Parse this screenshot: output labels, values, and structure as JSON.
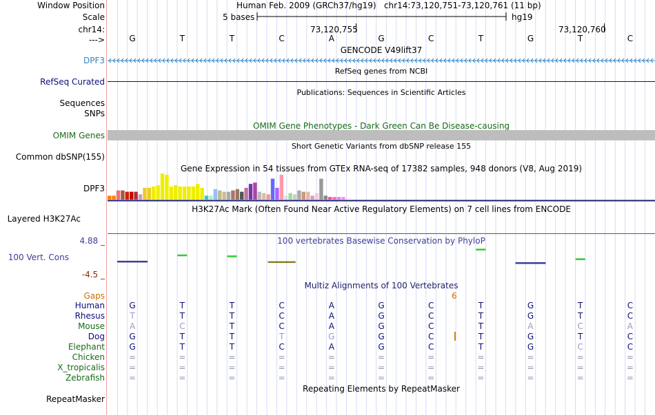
{
  "header": {
    "window_position_label": "Window Position",
    "scale_label": "Scale",
    "chrom_label": "chr14:",
    "strand_label": "--->",
    "position_title": "Human Feb. 2009 (GRCh37/hg19)   chr14:73,120,751-73,120,761 (11 bp)",
    "scale_text": "5 bases",
    "assembly": "hg19",
    "tick_left": "73,120,755",
    "tick_right": "73,120,760"
  },
  "bases": [
    "G",
    "T",
    "T",
    "C",
    "A",
    "G",
    "C",
    "T",
    "G",
    "T",
    "C"
  ],
  "tracks": {
    "gencode": {
      "side_label": "DPF3",
      "title": "GENCODE V49lift37",
      "color": "#3385c6"
    },
    "refseq": {
      "side_label": "RefSeq Curated",
      "title": "RefSeq genes from NCBI",
      "color": "#0c0c78"
    },
    "publications": {
      "side_label": "Sequences",
      "title": "Publications: Sequences in Scientific Articles"
    },
    "snps_pub": {
      "side_label": "SNPs"
    },
    "omim": {
      "side_label": "OMIM Genes",
      "title": "OMIM Gene Phenotypes - Dark Green Can Be Disease-causing",
      "color": "#176b17"
    },
    "dbsnp": {
      "side_label": "Common dbSNP(155)",
      "title": "Short Genetic Variants from dbSNP release 155"
    },
    "gtex": {
      "side_label": "DPF3",
      "title": "Gene Expression in 54 tissues from GTEx RNA-seq of 17382 samples, 948 donors (V8, Aug 2019)"
    },
    "h3k27ac": {
      "side_label": "Layered H3K27Ac",
      "title": "H3K27Ac Mark (Often Found Near Active Regulatory Elements) on 7 cell lines from ENCODE"
    },
    "phylop": {
      "side_label": "100 Vert. Cons",
      "max": "4.88 _",
      "min": "-4.5 _",
      "title": "100 vertebrates Basewise Conservation by PhyloP",
      "color": "#3c3c96"
    },
    "multiz": {
      "title": "Multiz Alignments of 100 Vertebrates",
      "color": "#1c1c6c",
      "gaps_label": "Gaps",
      "gap_count": "6"
    },
    "repeatmasker": {
      "side_label": "RepeatMasker",
      "title": "Repeating Elements by RepeatMasker"
    }
  },
  "species": [
    {
      "name": "Human",
      "color": "#0c0c78",
      "seq": [
        "G",
        "T",
        "T",
        "C",
        "A",
        "G",
        "C",
        "T",
        "G",
        "T",
        "C"
      ]
    },
    {
      "name": "Rhesus",
      "color": "#0c0c78",
      "seq": [
        "T",
        "T",
        "T",
        "C",
        "A",
        "G",
        "C",
        "T",
        "G",
        "T",
        "C"
      ]
    },
    {
      "name": "Mouse",
      "color": "#176b17",
      "seq": [
        "A",
        "C",
        "T",
        "C",
        "A",
        "G",
        "C",
        "T",
        "A",
        "C",
        "A"
      ]
    },
    {
      "name": "Dog",
      "color": "#0c0c78",
      "seq": [
        "G",
        "T",
        "T",
        "T",
        "G",
        "G",
        "C",
        "T",
        "G",
        "T",
        "C"
      ]
    },
    {
      "name": "Elephant",
      "color": "#176b17",
      "seq": [
        "G",
        "T",
        "T",
        "C",
        "A",
        "G",
        "C",
        "T",
        "G",
        "C",
        "C"
      ]
    },
    {
      "name": "Chicken",
      "color": "#176b17",
      "seq": [
        "=",
        "=",
        "=",
        "=",
        "=",
        "=",
        "=",
        "=",
        "=",
        "=",
        "="
      ]
    },
    {
      "name": "X_tropicalis",
      "color": "#176b17",
      "seq": [
        "=",
        "=",
        "=",
        "=",
        "=",
        "=",
        "=",
        "=",
        "=",
        "=",
        "="
      ]
    },
    {
      "name": "Zebrafish",
      "color": "#176b17",
      "seq": [
        "=",
        "=",
        "=",
        "=",
        "=",
        "=",
        "=",
        "=",
        "=",
        "=",
        "="
      ]
    }
  ],
  "gtex_bars": [
    {
      "v": 0.15,
      "c": "#ff7f00"
    },
    {
      "v": 0.15,
      "c": "#ff7f00"
    },
    {
      "v": 0.35,
      "c": "#ee7070"
    },
    {
      "v": 0.35,
      "c": "#aa5544"
    },
    {
      "v": 0.3,
      "c": "#cc2200"
    },
    {
      "v": 0.3,
      "c": "#cc0000"
    },
    {
      "v": 0.3,
      "c": "#aa3333"
    },
    {
      "v": 0.2,
      "c": "#cc99cc"
    },
    {
      "v": 0.45,
      "c": "#eecc22"
    },
    {
      "v": 0.45,
      "c": "#eecc22"
    },
    {
      "v": 0.5,
      "c": "#eeee00"
    },
    {
      "v": 0.55,
      "c": "#eeee00"
    },
    {
      "v": 1.0,
      "c": "#eeee00"
    },
    {
      "v": 0.95,
      "c": "#eeee00"
    },
    {
      "v": 0.5,
      "c": "#eeee00"
    },
    {
      "v": 0.55,
      "c": "#eeee00"
    },
    {
      "v": 0.5,
      "c": "#eeee00"
    },
    {
      "v": 0.5,
      "c": "#eeee00"
    },
    {
      "v": 0.5,
      "c": "#eeee00"
    },
    {
      "v": 0.5,
      "c": "#eeee00"
    },
    {
      "v": 0.6,
      "c": "#eeee00"
    },
    {
      "v": 0.45,
      "c": "#eeee00"
    },
    {
      "v": 0.15,
      "c": "#33cccc"
    },
    {
      "v": 0.15,
      "c": "#aaeecc"
    },
    {
      "v": 0.4,
      "c": "#99bbff"
    },
    {
      "v": 0.35,
      "c": "#bbbb88"
    },
    {
      "v": 0.3,
      "c": "#ccbb99"
    },
    {
      "v": 0.3,
      "c": "#aaaaaa"
    },
    {
      "v": 0.35,
      "c": "#aa7766"
    },
    {
      "v": 0.4,
      "c": "#997766"
    },
    {
      "v": 0.3,
      "c": "#555555"
    },
    {
      "v": 0.45,
      "c": "#bb7799"
    },
    {
      "v": 0.6,
      "c": "#7733aa"
    },
    {
      "v": 0.65,
      "c": "#aa44aa"
    },
    {
      "v": 0.3,
      "c": "#bbbbbb"
    },
    {
      "v": 0.25,
      "c": "#ddbbaa"
    },
    {
      "v": 0.2,
      "c": "#ee9999"
    },
    {
      "v": 0.8,
      "c": "#6666ff"
    },
    {
      "v": 0.45,
      "c": "#aa66ff"
    },
    {
      "v": 0.95,
      "c": "#ff99aa"
    },
    {
      "v": 0.15,
      "c": "#dddddd"
    },
    {
      "v": 0.25,
      "c": "#99dd99"
    },
    {
      "v": 0.2,
      "c": "#cccccc"
    },
    {
      "v": 0.35,
      "c": "#aaaaaa"
    },
    {
      "v": 0.3,
      "c": "#cc9977"
    },
    {
      "v": 0.3,
      "c": "#ddbbaa"
    },
    {
      "v": 0.15,
      "c": "#dd99cc"
    },
    {
      "v": 0.25,
      "c": "#eeccdd"
    },
    {
      "v": 0.8,
      "c": "#999999"
    },
    {
      "v": 0.15,
      "c": "#888888"
    },
    {
      "v": 0.1,
      "c": "#ff44aa"
    },
    {
      "v": 0.1,
      "c": "#ff66cc"
    },
    {
      "v": 0.1,
      "c": "#dd88dd"
    },
    {
      "v": 0.1,
      "c": "#ff88ff"
    }
  ],
  "phylop_marks": [
    {
      "base": 0,
      "score": 0.3,
      "c": "#3c3c96"
    },
    {
      "base": 1,
      "score": 1.6,
      "c": "#2ecc2e"
    },
    {
      "base": 2,
      "score": 1.4,
      "c": "#2ecc2e"
    },
    {
      "base": 3,
      "score": 0.2,
      "c": "#8a7a20"
    },
    {
      "base": 7,
      "score": 2.8,
      "c": "#2ecc2e"
    },
    {
      "base": 8,
      "score": -0.4,
      "c": "#3c3c96"
    },
    {
      "base": 9,
      "score": 0.8,
      "c": "#2ecc2e"
    }
  ]
}
